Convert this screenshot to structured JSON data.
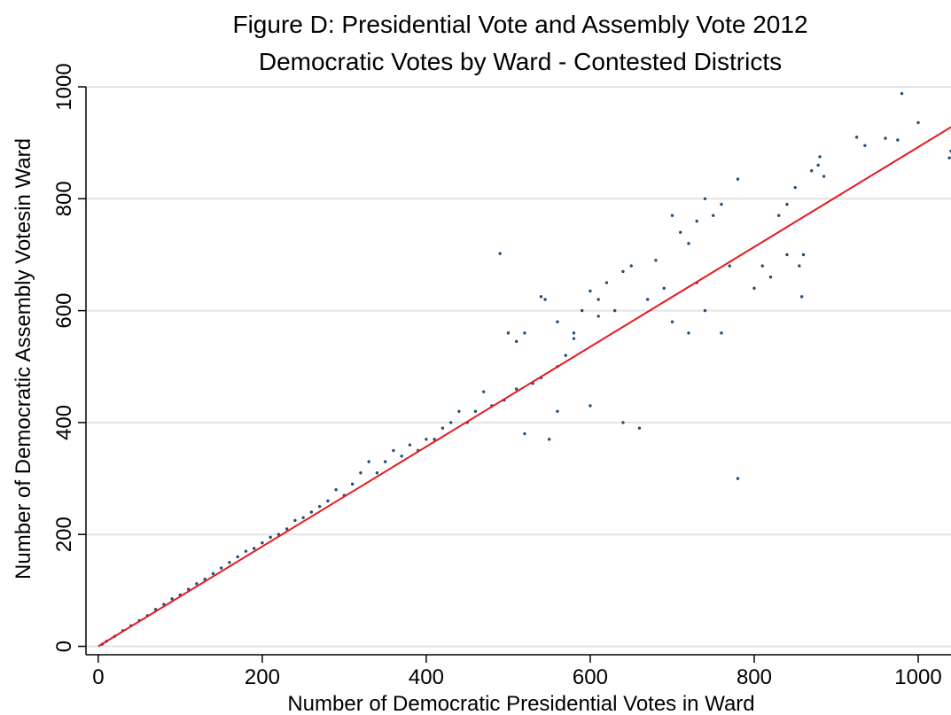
{
  "chart_data": {
    "type": "scatter",
    "title": "Figure D: Presidential Vote and Assembly Vote 2012",
    "subtitle": "Democratic Votes by Ward - Contested Districts",
    "xlabel": "Number of Democratic Presidential Votes in Ward",
    "ylabel": "Number of Democratic Assembly Votesin Ward",
    "xlim": [
      -15,
      1040
    ],
    "ylim": [
      -15,
      1000
    ],
    "x_ticks": [
      0,
      200,
      400,
      600,
      800,
      1000
    ],
    "y_ticks": [
      0,
      200,
      400,
      600,
      800,
      1000
    ],
    "x_tick_labels": [
      "0",
      "200",
      "400",
      "600",
      "800",
      "1000"
    ],
    "y_tick_labels": [
      "0",
      "200",
      "400",
      "600",
      "800",
      "1000"
    ],
    "grid": "horizontal",
    "legend": "none",
    "colors": {
      "points": "#1f4e79",
      "fit_line": "#e8191e",
      "grid": "#e3e3e3"
    },
    "series": [
      {
        "kind": "points",
        "points": [
          [
            980,
            988
          ],
          [
            1000,
            936
          ],
          [
            1040,
            885
          ],
          [
            1038,
            873
          ],
          [
            925,
            910
          ],
          [
            935,
            895
          ],
          [
            960,
            908
          ],
          [
            975,
            905
          ],
          [
            880,
            875
          ],
          [
            878,
            860
          ],
          [
            885,
            840
          ],
          [
            870,
            850
          ],
          [
            850,
            820
          ],
          [
            840,
            790
          ],
          [
            830,
            770
          ],
          [
            860,
            700
          ],
          [
            855,
            680
          ],
          [
            858,
            625
          ],
          [
            780,
            835
          ],
          [
            760,
            790
          ],
          [
            750,
            770
          ],
          [
            740,
            800
          ],
          [
            730,
            760
          ],
          [
            710,
            740
          ],
          [
            700,
            770
          ],
          [
            720,
            720
          ],
          [
            680,
            690
          ],
          [
            650,
            680
          ],
          [
            640,
            670
          ],
          [
            620,
            650
          ],
          [
            600,
            635
          ],
          [
            610,
            620
          ],
          [
            590,
            600
          ],
          [
            560,
            580
          ],
          [
            580,
            550
          ],
          [
            540,
            625
          ],
          [
            545,
            620
          ],
          [
            520,
            560
          ],
          [
            510,
            545
          ],
          [
            490,
            702
          ],
          [
            500,
            560
          ],
          [
            520,
            380
          ],
          [
            560,
            420
          ],
          [
            550,
            370
          ],
          [
            600,
            430
          ],
          [
            640,
            400
          ],
          [
            660,
            390
          ],
          [
            700,
            580
          ],
          [
            720,
            560
          ],
          [
            740,
            600
          ],
          [
            760,
            560
          ],
          [
            780,
            300
          ],
          [
            800,
            640
          ],
          [
            820,
            660
          ],
          [
            840,
            700
          ],
          [
            810,
            680
          ],
          [
            770,
            680
          ],
          [
            730,
            650
          ],
          [
            690,
            640
          ],
          [
            670,
            620
          ],
          [
            630,
            600
          ],
          [
            610,
            590
          ],
          [
            580,
            560
          ],
          [
            570,
            520
          ],
          [
            560,
            500
          ],
          [
            540,
            480
          ],
          [
            530,
            470
          ],
          [
            510,
            460
          ],
          [
            495,
            440
          ],
          [
            480,
            430
          ],
          [
            470,
            455
          ],
          [
            460,
            420
          ],
          [
            450,
            400
          ],
          [
            440,
            420
          ],
          [
            430,
            400
          ],
          [
            420,
            390
          ],
          [
            410,
            370
          ],
          [
            400,
            370
          ],
          [
            390,
            350
          ],
          [
            380,
            360
          ],
          [
            370,
            340
          ],
          [
            360,
            350
          ],
          [
            350,
            330
          ],
          [
            340,
            310
          ],
          [
            330,
            330
          ],
          [
            320,
            310
          ],
          [
            310,
            290
          ],
          [
            300,
            270
          ],
          [
            290,
            280
          ],
          [
            280,
            260
          ],
          [
            270,
            250
          ],
          [
            260,
            240
          ],
          [
            250,
            230
          ],
          [
            240,
            225
          ],
          [
            230,
            210
          ],
          [
            220,
            200
          ],
          [
            210,
            195
          ],
          [
            200,
            185
          ],
          [
            190,
            175
          ],
          [
            180,
            170
          ],
          [
            170,
            160
          ],
          [
            160,
            150
          ],
          [
            150,
            140
          ],
          [
            140,
            130
          ],
          [
            130,
            120
          ],
          [
            120,
            112
          ],
          [
            110,
            102
          ],
          [
            100,
            92
          ],
          [
            90,
            85
          ],
          [
            80,
            75
          ],
          [
            70,
            66
          ],
          [
            60,
            55
          ],
          [
            50,
            46
          ],
          [
            40,
            37
          ],
          [
            30,
            28
          ],
          [
            20,
            18
          ],
          [
            10,
            9
          ],
          [
            5,
            4
          ]
        ]
      },
      {
        "kind": "fit_line",
        "points": [
          [
            0,
            0
          ],
          [
            1040,
            928
          ]
        ]
      }
    ]
  }
}
